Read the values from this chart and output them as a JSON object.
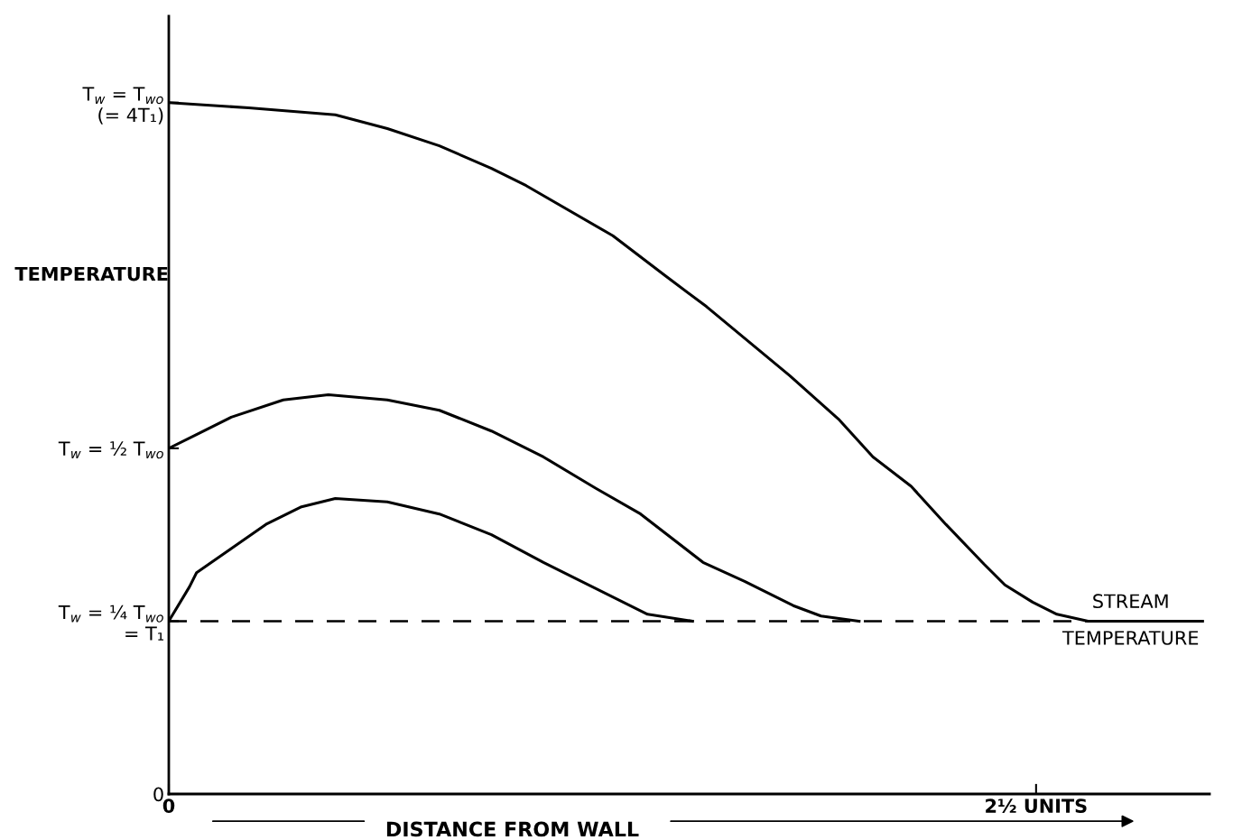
{
  "chart_data": {
    "type": "line",
    "xlabel": "DISTANCE FROM WALL",
    "ylabel": "TEMPERATURE",
    "xlim": [
      0,
      3.0
    ],
    "ylim": [
      0,
      4.5
    ],
    "xticks": [
      0,
      {
        "value": 2.5,
        "label": "2½ UNITS"
      }
    ],
    "yticks": [
      0,
      {
        "value": 1,
        "label": "T$_{w}$ = ¼ T$_{wo}$\n= T₁"
      },
      {
        "value": 2,
        "label": "T$_{w}$ = ½ T$_{wo}$"
      },
      {
        "value": 4,
        "label": "T$_{w}$ = T$_{wo}$\n(= 4T₁)"
      }
    ],
    "series": [
      {
        "color": "#000000",
        "x": [
          0,
          0.23,
          0.48,
          0.63,
          0.78,
          0.93,
          1.03,
          1.28,
          1.43,
          1.55,
          1.79,
          1.93,
          2.03,
          2.14,
          2.24,
          2.35,
          2.41,
          2.49,
          2.56,
          2.65,
          2.98
        ],
        "values": [
          4.0,
          3.97,
          3.93,
          3.85,
          3.75,
          3.62,
          3.52,
          3.23,
          3.0,
          2.82,
          2.42,
          2.17,
          1.95,
          1.78,
          1.56,
          1.33,
          1.21,
          1.11,
          1.04,
          1.0,
          1.0
        ]
      },
      {
        "color": "#000000",
        "x": [
          0,
          0.08,
          0.18,
          0.33,
          0.46,
          0.63,
          0.78,
          0.93,
          1.08,
          1.23,
          1.36,
          1.54,
          1.66,
          1.8,
          1.88,
          1.99
        ],
        "values": [
          2.0,
          2.08,
          2.18,
          2.28,
          2.31,
          2.28,
          2.22,
          2.1,
          1.95,
          1.77,
          1.62,
          1.34,
          1.23,
          1.09,
          1.03,
          1.0
        ]
      },
      {
        "color": "#000000",
        "x": [
          0,
          0.06,
          0.08,
          0.18,
          0.28,
          0.38,
          0.48,
          0.63,
          0.78,
          0.93,
          1.08,
          1.23,
          1.38,
          1.51
        ],
        "values": [
          1.0,
          1.2,
          1.28,
          1.42,
          1.56,
          1.66,
          1.71,
          1.69,
          1.62,
          1.5,
          1.34,
          1.19,
          1.04,
          1.0
        ]
      }
    ],
    "ref_lines": [
      {
        "axis": "y",
        "value": 1,
        "label": "STREAM\nTEMPERATURE",
        "color": "#000000",
        "line_style": "dashed"
      }
    ],
    "grid": false,
    "legend": false,
    "marker": "none",
    "line_style": "solid"
  }
}
